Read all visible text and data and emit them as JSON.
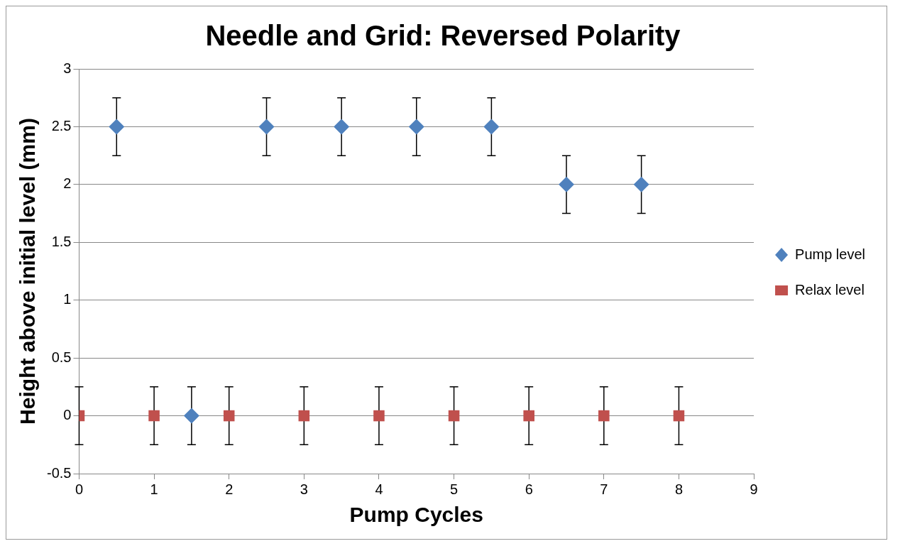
{
  "chart_data": {
    "type": "scatter",
    "title": "Needle and Grid: Reversed Polarity",
    "xlabel": "Pump Cycles",
    "ylabel": "Height above initial level (mm)",
    "xlim": [
      0,
      9
    ],
    "xticks": [
      0,
      1,
      2,
      3,
      4,
      5,
      6,
      7,
      8,
      9
    ],
    "ylim": [
      -0.5,
      3
    ],
    "yticks": [
      -0.5,
      0,
      0.5,
      1,
      1.5,
      2,
      2.5,
      3
    ],
    "grid": "y",
    "legend": "right",
    "series": [
      {
        "name": "Pump level",
        "color": "#4f81bd",
        "marker": "diamond",
        "x": [
          0.5,
          1.5,
          2.5,
          3.5,
          4.5,
          5.5,
          6.5,
          7.5
        ],
        "values": [
          2.5,
          0,
          2.5,
          2.5,
          2.5,
          2.5,
          2,
          2
        ],
        "errors": [
          0.25,
          0.25,
          0.25,
          0.25,
          0.25,
          0.25,
          0.25,
          0.25
        ]
      },
      {
        "name": "Relax level",
        "color": "#c0504d",
        "marker": "square",
        "x": [
          0,
          1,
          2,
          3,
          4,
          5,
          6,
          7,
          8
        ],
        "values": [
          0,
          0,
          0,
          0,
          0,
          0,
          0,
          0,
          0
        ],
        "errors": [
          0.25,
          0.25,
          0.25,
          0.25,
          0.25,
          0.25,
          0.25,
          0.25,
          0.25
        ]
      }
    ]
  }
}
